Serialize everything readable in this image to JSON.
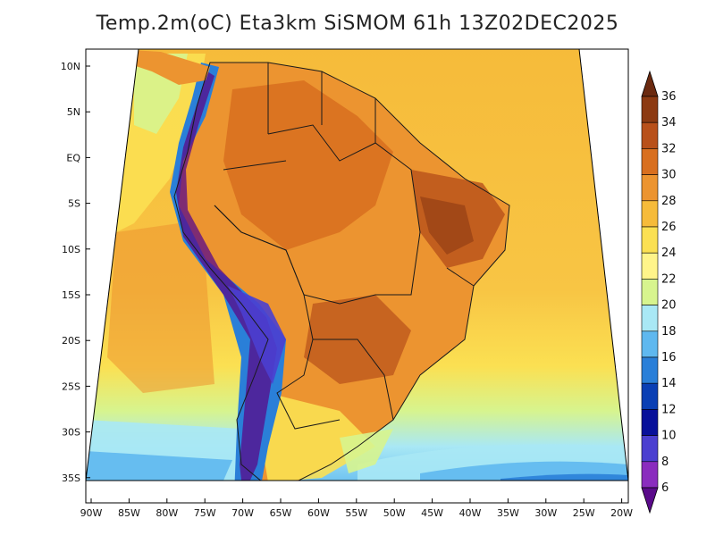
{
  "title": "Temp.2m(oC) Eta3km SiSMOM 61h 13Z02DEC2025",
  "lat_labels": [
    "10N",
    "5N",
    "EQ",
    "5S",
    "10S",
    "15S",
    "20S",
    "25S",
    "30S",
    "35S"
  ],
  "lon_labels": [
    "90W",
    "85W",
    "80W",
    "75W",
    "70W",
    "65W",
    "60W",
    "55W",
    "50W",
    "45W",
    "40W",
    "35W",
    "30W",
    "25W",
    "20W"
  ],
  "colorbar": {
    "labels": [
      "36",
      "34",
      "32",
      "30",
      "28",
      "26",
      "24",
      "22",
      "20",
      "18",
      "16",
      "14",
      "12",
      "10",
      "8",
      "6"
    ],
    "colors": [
      "#6b2a10",
      "#8c3a12",
      "#b8501a",
      "#d86f1f",
      "#ec9430",
      "#f6bb3a",
      "#fbe052",
      "#fff48a",
      "#d7f48e",
      "#a9e8f5",
      "#5fb8ef",
      "#2a7fd8",
      "#0a3fb4",
      "#08109a",
      "#4b3fd0",
      "#8a2cbe",
      "#5a0a8a"
    ]
  },
  "legend_colors": {
    "frame": "#000000",
    "land_border": "#1a1a1a"
  }
}
